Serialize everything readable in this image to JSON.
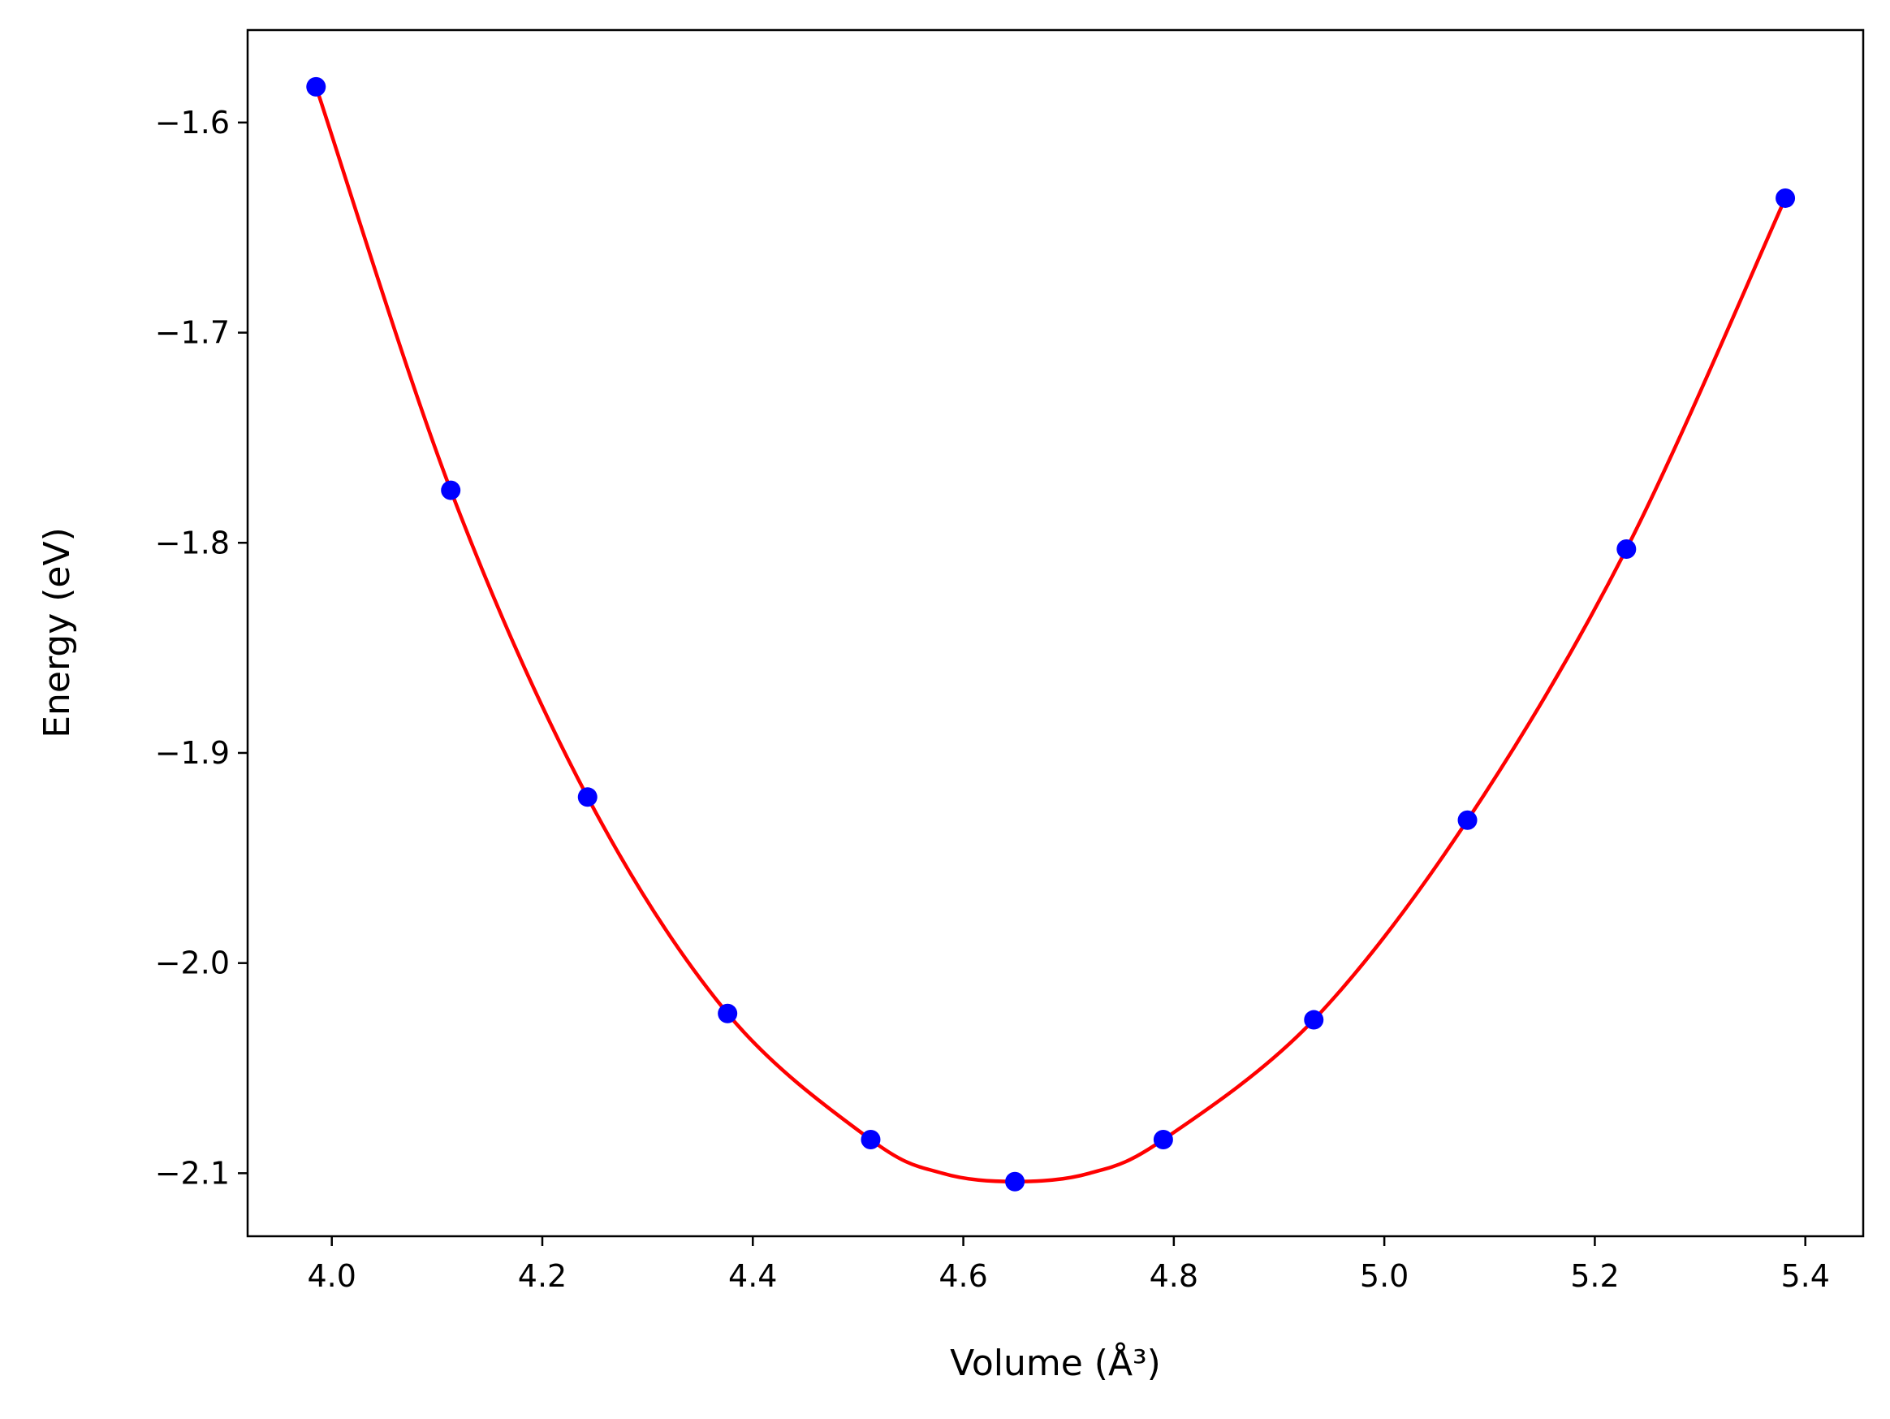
{
  "chart_data": {
    "type": "scatter",
    "xlabel": "Volume (Å³)",
    "ylabel": "Energy (eV)",
    "xlim": [
      3.92,
      5.455
    ],
    "ylim": [
      -2.13,
      -1.556
    ],
    "x_ticks": [
      4.0,
      4.2,
      4.4,
      4.6,
      4.8,
      5.0,
      5.2,
      5.4
    ],
    "x_tick_labels": [
      "4.0",
      "4.2",
      "4.4",
      "4.6",
      "4.8",
      "5.0",
      "5.2",
      "5.4"
    ],
    "y_ticks": [
      -1.6,
      -1.7,
      -1.8,
      -1.9,
      -2.0,
      -2.1
    ],
    "y_tick_labels": [
      "−1.6",
      "−1.7",
      "−1.8",
      "−1.9",
      "−2.0",
      "−2.1"
    ],
    "grid": false,
    "series": [
      {
        "kind": "markers",
        "color": "#0000ff",
        "x": [
          3.985,
          4.113,
          4.243,
          4.376,
          4.512,
          4.649,
          4.79,
          4.933,
          5.079,
          5.23,
          5.381
        ],
        "y": [
          -1.583,
          -1.775,
          -1.921,
          -2.024,
          -2.084,
          -2.104,
          -2.084,
          -2.027,
          -1.932,
          -1.803,
          -1.636
        ]
      },
      {
        "kind": "fit-curve",
        "color": "#ff0000",
        "x": [
          3.985,
          4.113,
          4.243,
          4.376,
          4.512,
          4.58,
          4.649,
          4.72,
          4.79,
          4.933,
          5.079,
          5.23,
          5.381
        ],
        "y": [
          -1.583,
          -1.775,
          -1.921,
          -2.024,
          -2.084,
          -2.1,
          -2.104,
          -2.1,
          -2.084,
          -2.027,
          -1.932,
          -1.803,
          -1.636
        ]
      }
    ]
  }
}
